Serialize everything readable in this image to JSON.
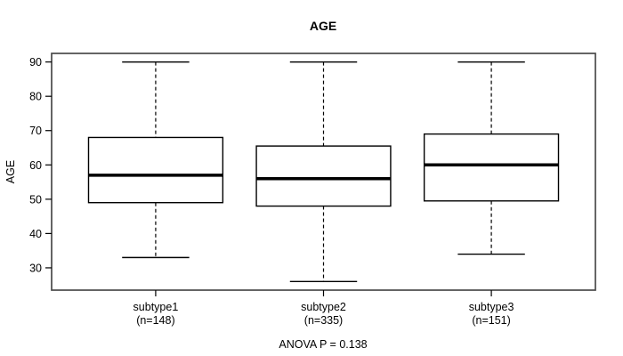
{
  "chart_data": {
    "type": "boxplot",
    "title": "AGE",
    "ylabel": "AGE",
    "annotation": "ANOVA P = 0.138",
    "yticks": [
      30,
      40,
      50,
      60,
      70,
      80,
      90
    ],
    "ylim": [
      23.5,
      92.5
    ],
    "grid": false,
    "frame": true,
    "legend": "none",
    "categories": [
      "subtype1",
      "subtype2",
      "subtype3"
    ],
    "category_sublabels": [
      "(n=148)",
      "(n=335)",
      "(n=151)"
    ],
    "series": [
      {
        "name": "subtype1",
        "n": 148,
        "whisker_low": 33,
        "q1": 49,
        "median": 57,
        "q3": 68,
        "whisker_high": 90,
        "outliers": []
      },
      {
        "name": "subtype2",
        "n": 335,
        "whisker_low": 26,
        "q1": 48,
        "median": 56,
        "q3": 65.5,
        "whisker_high": 90,
        "outliers": []
      },
      {
        "name": "subtype3",
        "n": 151,
        "whisker_low": 34,
        "q1": 49.5,
        "median": 60,
        "q3": 69,
        "whisker_high": 90,
        "outliers": []
      }
    ],
    "colors": {
      "line": "#000000",
      "frame": "#4a4a4a",
      "box_fill": "#ffffff",
      "background": "#ffffff"
    }
  }
}
